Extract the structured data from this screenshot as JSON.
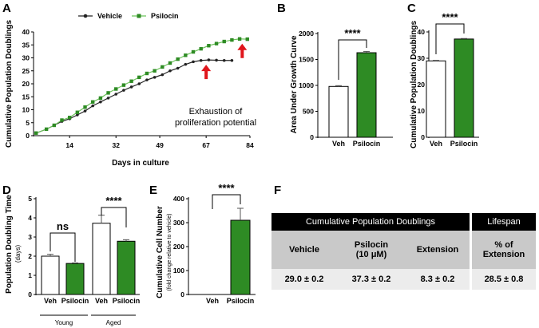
{
  "panels": {
    "a": "A",
    "b": "B",
    "c": "C",
    "d": "D",
    "e": "E",
    "f": "F"
  },
  "colors": {
    "vehicle": "#222222",
    "psilocin": "#2e8b24",
    "psilocin_line": "#6cc35a",
    "arrow": "#e0161c"
  },
  "chart_data": [
    {
      "id": "A",
      "type": "line",
      "xlabel": "Days in culture",
      "ylabel": "Cumulative Population Doublings",
      "xticks": [
        14,
        32,
        49,
        67,
        84
      ],
      "yticks": [
        0,
        5,
        10,
        15,
        20,
        25,
        30,
        35,
        40
      ],
      "xlim": [
        0,
        84
      ],
      "ylim": [
        0,
        40
      ],
      "legend": {
        "position": "top",
        "entries": [
          "Vehicle",
          "Psilocin"
        ]
      },
      "annotation": {
        "lines": [
          "Exhaustion of",
          "proliferation potential"
        ]
      },
      "arrows_at_days": [
        67,
        81
      ],
      "series": [
        {
          "name": "Vehicle",
          "marker": "filled-circle",
          "x": [
            1,
            5,
            8,
            11,
            14,
            17,
            20,
            23,
            26,
            29,
            32,
            35,
            38,
            41,
            44,
            47,
            50,
            53,
            56,
            59,
            62,
            65,
            68,
            71,
            74,
            77
          ],
          "y": [
            1,
            2.5,
            4,
            5.5,
            6.5,
            8,
            9.5,
            11.5,
            13,
            14.5,
            16,
            17.5,
            18.8,
            20,
            21.5,
            22.5,
            23.5,
            25,
            26,
            27.5,
            28.5,
            29,
            29.2,
            29.1,
            29.0,
            29.0
          ]
        },
        {
          "name": "Psilocin",
          "marker": "filled-square",
          "x": [
            1,
            5,
            8,
            11,
            14,
            17,
            20,
            23,
            26,
            29,
            32,
            35,
            38,
            41,
            44,
            47,
            50,
            53,
            56,
            59,
            62,
            65,
            68,
            71,
            74,
            77,
            80,
            83
          ],
          "y": [
            1,
            2.5,
            4,
            6,
            7,
            9,
            11,
            13,
            14.5,
            16.5,
            18,
            19.5,
            21,
            22.5,
            24,
            25,
            26.5,
            28,
            29.5,
            31,
            32.3,
            33.5,
            34.7,
            35.5,
            36.3,
            36.9,
            37.3,
            37.2
          ]
        }
      ]
    },
    {
      "id": "B",
      "type": "bar",
      "ylabel": "Area Under Growth Curve",
      "categories": [
        "Veh",
        "Psilocin"
      ],
      "values": [
        980,
        1630
      ],
      "errors": [
        15,
        25
      ],
      "ylim": [
        0,
        2000
      ],
      "yticks": [
        0,
        500,
        1000,
        1500,
        2000
      ],
      "significance": "****"
    },
    {
      "id": "C",
      "type": "bar",
      "ylabel": "Cumulative Population Doublings",
      "categories": [
        "Veh",
        "Psilocin"
      ],
      "values": [
        29.0,
        37.3
      ],
      "errors": [
        0.2,
        0.2
      ],
      "ylim": [
        0,
        40
      ],
      "yticks": [
        0,
        10,
        20,
        30,
        40
      ],
      "significance": "****"
    },
    {
      "id": "D",
      "type": "bar",
      "ylabel": "Population Doubling Time",
      "ylabel_unit": "(days)",
      "categories": [
        "Veh",
        "Psilocin",
        "Veh",
        "Psilocin"
      ],
      "groups": [
        "Young",
        "Aged"
      ],
      "values": [
        2.0,
        1.62,
        3.72,
        2.78
      ],
      "errors": [
        0.1,
        0.03,
        0.42,
        0.08
      ],
      "ylim": [
        0,
        5
      ],
      "yticks": [
        0,
        1,
        2,
        3,
        4,
        5
      ],
      "significance": [
        "ns",
        "****"
      ]
    },
    {
      "id": "E",
      "type": "bar",
      "ylabel": "Cumulative Cell Number",
      "ylabel_unit": "(fold change relative to vehicle)",
      "categories": [
        "Veh",
        "Psilocin"
      ],
      "values": [
        0,
        310
      ],
      "errors": [
        0,
        50
      ],
      "ylim": [
        0,
        400
      ],
      "yticks": [
        0,
        100,
        200,
        300,
        400
      ],
      "significance": "****"
    }
  ],
  "table": {
    "header_left": "Cumulative Population Doublings",
    "header_right": "Lifespan",
    "col_vehicle": "Vehicle",
    "col_psilocin_1": "Psilocin",
    "col_psilocin_2": "(10 μM)",
    "col_extension": "Extension",
    "col_pct_1": "% of",
    "col_pct_2": "Extension",
    "val_vehicle": "29.0 ± 0.2",
    "val_psilocin": "37.3 ± 0.2",
    "val_extension": "8.3 ± 0.2",
    "val_pct": "28.5 ± 0.8"
  }
}
